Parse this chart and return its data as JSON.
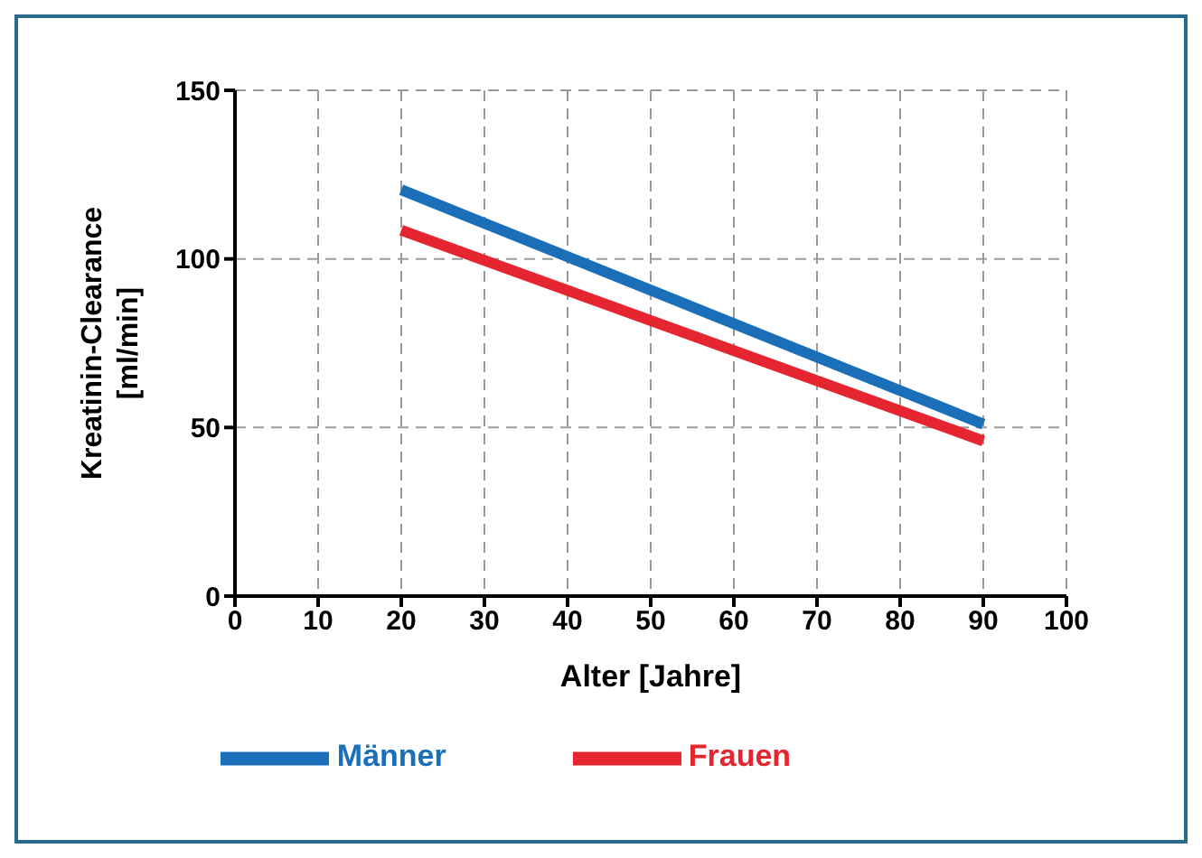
{
  "chart_data": {
    "type": "line",
    "xlabel": "Alter [Jahre]",
    "ylabel": "Kreatinin-Clearance [ml/min]",
    "x": [
      20,
      90
    ],
    "series": [
      {
        "name": "Männer",
        "color": "#1b6fb8",
        "values": [
          120.5,
          51
        ]
      },
      {
        "name": "Frauen",
        "color": "#e52530",
        "values": [
          108.5,
          46
        ]
      }
    ],
    "xlim": [
      0,
      100
    ],
    "xticks": [
      0,
      10,
      20,
      30,
      40,
      50,
      60,
      70,
      80,
      90,
      100
    ],
    "ylim": [
      0,
      150
    ],
    "yticks": [
      0,
      50,
      100,
      150
    ],
    "grid": true,
    "legend": "bottom",
    "marker": "none",
    "line_style": "solid"
  }
}
